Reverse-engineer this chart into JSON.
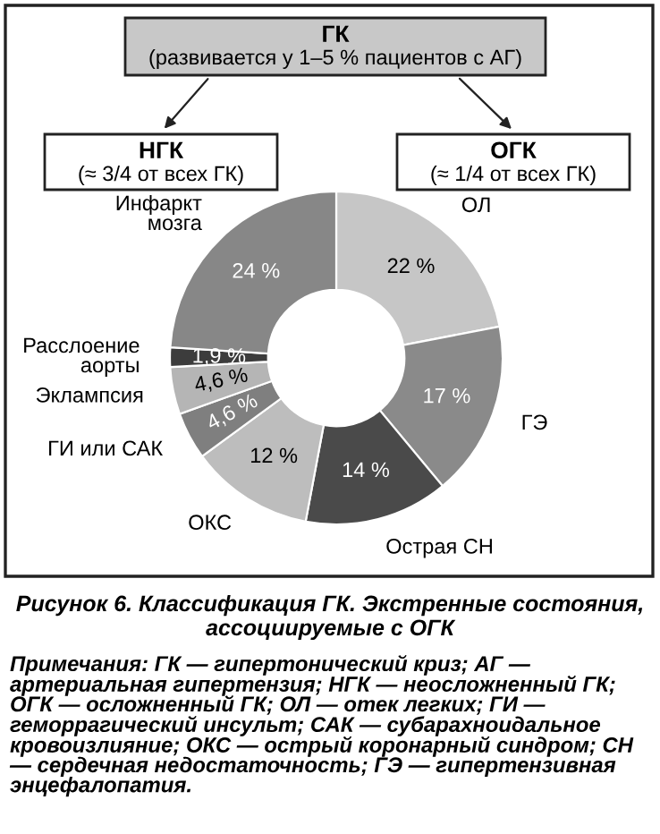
{
  "chart_data": {
    "type": "donut",
    "title": "Рисунок 6. Классификация ГК. Экстренные состояния, ассоциируемые с ОГК",
    "categories": [
      "ОЛ",
      "ГЭ",
      "Острая СН",
      "ОКС",
      "ГИ или САК",
      "Эклампсия",
      "Расслоение\nаорты",
      "Инфаркт\nмозга"
    ],
    "values": [
      22,
      17,
      14,
      12,
      4.6,
      4.6,
      1.9,
      24
    ],
    "value_labels": [
      "22 %",
      "17 %",
      "14 %",
      "12 %",
      "4,6 %",
      "4,6 %",
      "1,9 %",
      "24 %"
    ],
    "colors": [
      "#c6c6c6",
      "#8a8a8a",
      "#4a4a4a",
      "#bdbdbd",
      "#7f7f7f",
      "#b5b5b5",
      "#3c3c3c",
      "#878787"
    ],
    "annotations": [
      "ГК",
      "(развивается у 1–5 % пациентов с АГ)",
      "НГК",
      "(≈ 3/4 от всех ГК)",
      "ОГК",
      "(≈ 1/4 от всех ГК)",
      "Примечания: ГК — гипертонический криз; АГ — артериальная гипертензия; НГК — неосложненный ГК; ОГК — осложненный ГК; ОЛ — отек легких; ГИ — геморрагический инсульт; САК — субарахноидальное кровоизлияние; ОКС — острый коронарный синдром; СН — сердечная недостаточность; ГЭ — гипертензивная энцефалопатия."
    ]
  }
}
